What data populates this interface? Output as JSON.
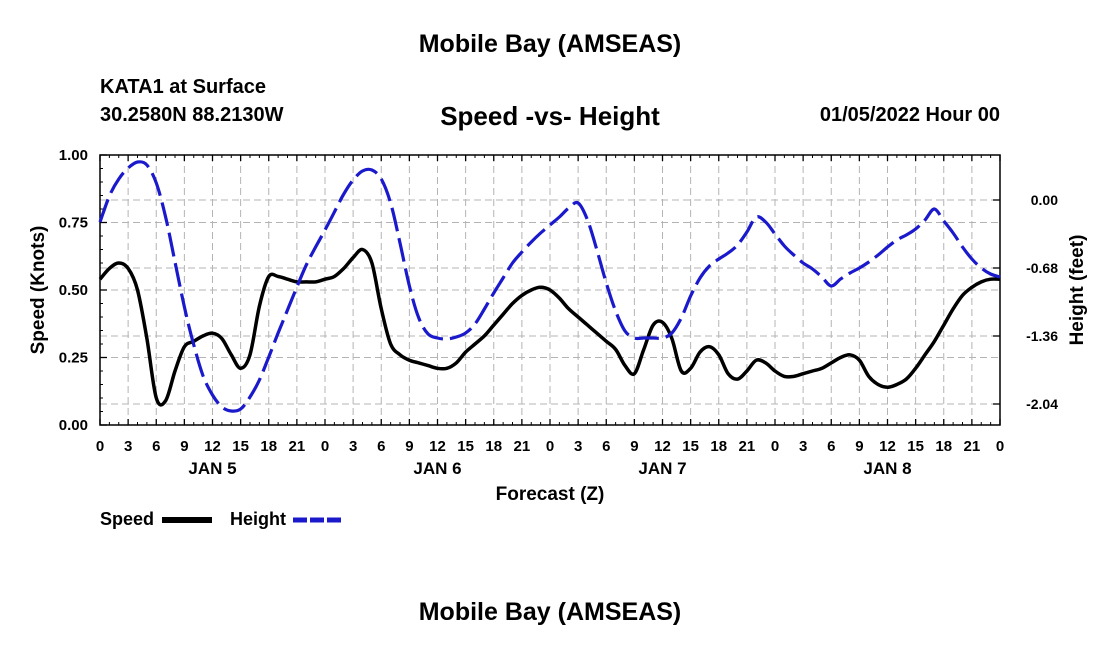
{
  "header": {
    "title": "Mobile Bay (AMSEAS)",
    "station": "KATA1 at Surface",
    "coords": "30.2580N  88.2130W",
    "subtitle": "Speed -vs- Height",
    "datetime": "01/05/2022 Hour 00"
  },
  "footer": {
    "title_repeat": "Mobile Bay (AMSEAS)"
  },
  "legend": {
    "speed_label": "Speed",
    "height_label": "Height"
  },
  "chart_data": {
    "type": "line",
    "title": "Speed -vs- Height",
    "xlabel": "Forecast (Z)",
    "ylabel": "Speed (Knots)",
    "y2label": "Height (feet)",
    "x_unit": "hours since 01/05/2022 00Z",
    "xlim": [
      0,
      96
    ],
    "ylim": [
      0,
      1.0
    ],
    "y2lim": [
      -2.25,
      0.45
    ],
    "x_ticks": [
      0,
      3,
      6,
      9,
      12,
      15,
      18,
      21,
      24,
      27,
      30,
      33,
      36,
      39,
      42,
      45,
      48,
      51,
      54,
      57,
      60,
      63,
      66,
      69,
      72,
      75,
      78,
      81,
      84,
      87,
      90,
      93,
      96
    ],
    "x_tick_labels": [
      "0",
      "3",
      "6",
      "9",
      "12",
      "15",
      "18",
      "21",
      "0",
      "3",
      "6",
      "9",
      "12",
      "15",
      "18",
      "21",
      "0",
      "3",
      "6",
      "9",
      "12",
      "15",
      "18",
      "21",
      "0",
      "3",
      "6",
      "9",
      "12",
      "15",
      "18",
      "21",
      "0"
    ],
    "day_labels": [
      {
        "x": 12,
        "label": "JAN 5"
      },
      {
        "x": 36,
        "label": "JAN 6"
      },
      {
        "x": 60,
        "label": "JAN 7"
      },
      {
        "x": 84,
        "label": "JAN 8"
      }
    ],
    "y_ticks": [
      0.0,
      0.25,
      0.5,
      0.75,
      1.0
    ],
    "y_tick_labels": [
      "0.00",
      "0.25",
      "0.50",
      "0.75",
      "1.00"
    ],
    "y2_ticks": [
      0.0,
      -0.68,
      -1.36,
      -2.04
    ],
    "y2_tick_labels": [
      "0.00",
      "-0.68",
      "-1.36",
      "-2.04"
    ],
    "grid": true,
    "series": [
      {
        "name": "Speed",
        "axis": "left",
        "color": "#000000",
        "style": "solid",
        "x": [
          0,
          1,
          2,
          3,
          4,
          5,
          6,
          7,
          8,
          9,
          10,
          11,
          12,
          13,
          14,
          15,
          16,
          17,
          18,
          19,
          20,
          21,
          22,
          23,
          24,
          25,
          26,
          27,
          28,
          29,
          30,
          31,
          32,
          33,
          34,
          35,
          36,
          37,
          38,
          39,
          40,
          41,
          42,
          43,
          44,
          45,
          46,
          47,
          48,
          49,
          50,
          51,
          52,
          53,
          54,
          55,
          56,
          57,
          58,
          59,
          60,
          61,
          62,
          63,
          64,
          65,
          66,
          67,
          68,
          69,
          70,
          71,
          72,
          73,
          74,
          75,
          76,
          77,
          78,
          79,
          80,
          81,
          82,
          83,
          84,
          85,
          86,
          87,
          88,
          89,
          90,
          91,
          92,
          93,
          94,
          95,
          96
        ],
        "values": [
          0.54,
          0.58,
          0.6,
          0.58,
          0.5,
          0.32,
          0.1,
          0.09,
          0.2,
          0.29,
          0.31,
          0.33,
          0.34,
          0.32,
          0.26,
          0.21,
          0.26,
          0.44,
          0.55,
          0.55,
          0.54,
          0.53,
          0.53,
          0.53,
          0.54,
          0.55,
          0.58,
          0.62,
          0.65,
          0.6,
          0.43,
          0.3,
          0.26,
          0.24,
          0.23,
          0.22,
          0.21,
          0.21,
          0.23,
          0.27,
          0.3,
          0.33,
          0.37,
          0.41,
          0.45,
          0.48,
          0.5,
          0.51,
          0.5,
          0.47,
          0.43,
          0.4,
          0.37,
          0.34,
          0.31,
          0.28,
          0.22,
          0.19,
          0.28,
          0.37,
          0.38,
          0.32,
          0.2,
          0.21,
          0.27,
          0.29,
          0.26,
          0.19,
          0.17,
          0.2,
          0.24,
          0.23,
          0.2,
          0.18,
          0.18,
          0.19,
          0.2,
          0.21,
          0.23,
          0.25,
          0.26,
          0.24,
          0.18,
          0.15,
          0.14,
          0.15,
          0.17,
          0.21,
          0.26,
          0.31,
          0.37,
          0.43,
          0.48,
          0.51,
          0.53,
          0.54,
          0.54
        ]
      },
      {
        "name": "Height",
        "axis": "right",
        "color": "#1a1acc",
        "style": "dashed",
        "x": [
          0,
          1,
          2,
          3,
          4,
          5,
          6,
          7,
          8,
          9,
          10,
          11,
          12,
          13,
          14,
          15,
          16,
          17,
          18,
          19,
          20,
          21,
          22,
          23,
          24,
          25,
          26,
          27,
          28,
          29,
          30,
          31,
          32,
          33,
          34,
          35,
          36,
          37,
          38,
          39,
          40,
          41,
          42,
          43,
          44,
          45,
          46,
          47,
          48,
          49,
          50,
          51,
          52,
          53,
          54,
          55,
          56,
          57,
          58,
          59,
          60,
          61,
          62,
          63,
          64,
          65,
          66,
          67,
          68,
          69,
          70,
          71,
          72,
          73,
          74,
          75,
          76,
          77,
          78,
          79,
          80,
          81,
          82,
          83,
          84,
          85,
          86,
          87,
          88,
          89,
          90,
          91,
          92,
          93,
          94,
          95,
          96
        ],
        "values": [
          -0.22,
          0.04,
          0.21,
          0.32,
          0.38,
          0.35,
          0.17,
          -0.17,
          -0.62,
          -1.07,
          -1.45,
          -1.76,
          -1.95,
          -2.07,
          -2.11,
          -2.09,
          -1.97,
          -1.8,
          -1.57,
          -1.33,
          -1.1,
          -0.87,
          -0.65,
          -0.47,
          -0.3,
          -0.12,
          0.06,
          0.2,
          0.29,
          0.3,
          0.21,
          -0.03,
          -0.43,
          -0.86,
          -1.18,
          -1.34,
          -1.38,
          -1.39,
          -1.37,
          -1.33,
          -1.24,
          -1.09,
          -0.93,
          -0.78,
          -0.63,
          -0.52,
          -0.42,
          -0.33,
          -0.25,
          -0.17,
          -0.08,
          -0.03,
          -0.2,
          -0.5,
          -0.83,
          -1.11,
          -1.31,
          -1.38,
          -1.38,
          -1.38,
          -1.38,
          -1.33,
          -1.18,
          -0.96,
          -0.78,
          -0.66,
          -0.59,
          -0.53,
          -0.45,
          -0.32,
          -0.17,
          -0.22,
          -0.34,
          -0.46,
          -0.55,
          -0.63,
          -0.69,
          -0.77,
          -0.86,
          -0.79,
          -0.73,
          -0.68,
          -0.62,
          -0.55,
          -0.47,
          -0.4,
          -0.35,
          -0.29,
          -0.2,
          -0.09,
          -0.21,
          -0.33,
          -0.47,
          -0.59,
          -0.68,
          -0.74,
          -0.77
        ]
      }
    ]
  }
}
